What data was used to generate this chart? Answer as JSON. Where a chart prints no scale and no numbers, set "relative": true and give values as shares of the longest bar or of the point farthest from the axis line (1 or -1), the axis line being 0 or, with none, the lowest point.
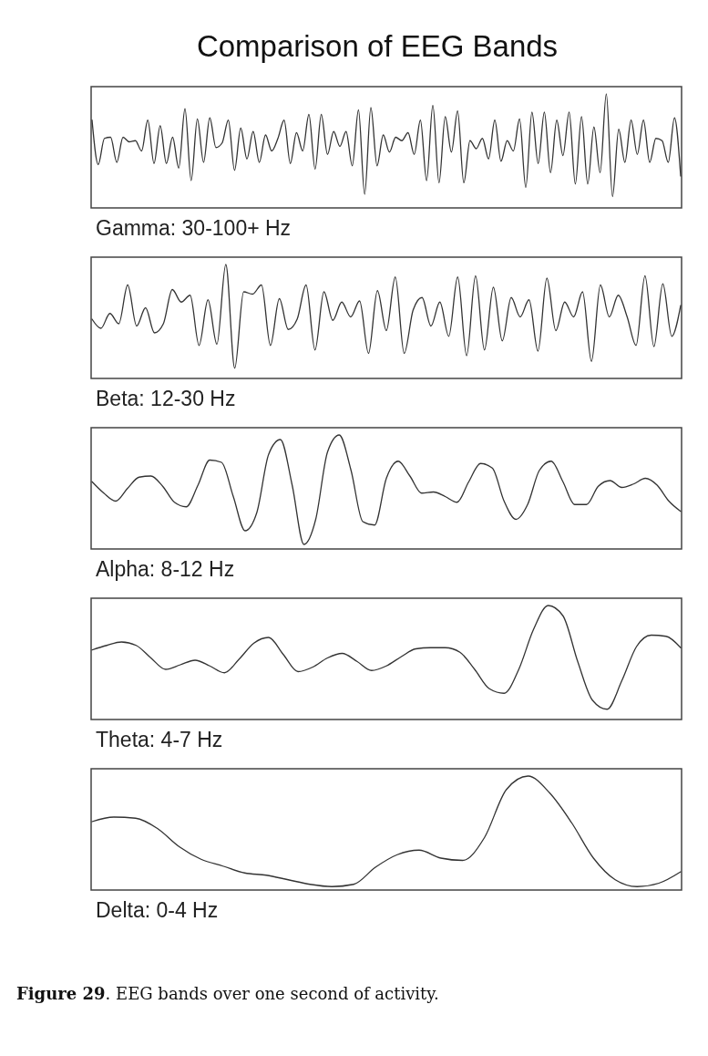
{
  "chart_data": [
    {
      "type": "line",
      "relative": true,
      "title": "Comparison of EEG Bands",
      "xlabel": "Gamma: 30-100+ Hz",
      "categories": [
        null,
        null,
        null,
        null,
        null,
        null,
        null,
        null,
        null,
        null,
        null,
        null,
        null,
        null,
        null,
        null,
        null,
        null,
        null,
        null,
        null,
        null,
        null,
        null,
        null,
        null,
        null,
        null,
        null,
        null,
        null,
        null,
        null,
        null,
        null,
        null,
        null,
        null,
        null,
        null,
        null,
        null,
        null,
        null,
        null,
        null,
        null,
        null,
        null,
        null,
        null,
        null,
        null,
        null,
        null,
        null,
        null,
        null,
        null,
        null,
        null,
        null,
        null,
        null,
        null,
        null,
        null,
        null,
        null,
        null,
        null,
        null,
        null,
        null,
        null,
        null,
        null,
        null,
        null,
        null,
        null,
        null,
        null,
        null,
        null,
        null,
        null,
        null,
        null,
        null,
        null,
        null,
        null,
        null,
        null,
        null
      ],
      "series": [
        {
          "color": "#333333",
          "values": [
            0.77,
            0.38,
            0.61,
            0.62,
            0.4,
            0.62,
            0.58,
            0.59,
            0.5,
            0.77,
            0.39,
            0.72,
            0.39,
            0.62,
            0.35,
            0.87,
            0.24,
            0.78,
            0.4,
            0.79,
            0.53,
            0.57,
            0.77,
            0.33,
            0.7,
            0.43,
            0.67,
            0.4,
            0.64,
            0.5,
            0.61,
            0.77,
            0.39,
            0.66,
            0.5,
            0.82,
            0.34,
            0.82,
            0.47,
            0.67,
            0.54,
            0.67,
            0.37,
            0.86,
            0.12,
            0.88,
            0.37,
            0.64,
            0.49,
            0.62,
            0.59,
            0.66,
            0.47,
            0.77,
            0.24,
            0.9,
            0.22,
            0.8,
            0.49,
            0.85,
            0.22,
            0.59,
            0.52,
            0.61,
            0.43,
            0.77,
            0.41,
            0.59,
            0.5,
            0.78,
            0.18,
            0.84,
            0.39,
            0.84,
            0.31,
            0.77,
            0.46,
            0.84,
            0.21,
            0.8,
            0.21,
            0.71,
            0.31,
            1,
            0.1,
            0.69,
            0.4,
            0.77,
            0.47,
            0.77,
            0.4,
            0.61,
            0.59,
            0.4,
            0.79,
            0.28
          ]
        }
      ]
    },
    {
      "type": "line",
      "relative": true,
      "xlabel": "Beta: 12-30 Hz",
      "categories": [
        null,
        null,
        null,
        null,
        null,
        null,
        null,
        null,
        null,
        null,
        null,
        null,
        null,
        null,
        null,
        null,
        null,
        null,
        null,
        null,
        null,
        null,
        null,
        null,
        null,
        null,
        null,
        null,
        null,
        null,
        null,
        null,
        null,
        null,
        null,
        null,
        null,
        null,
        null,
        null,
        null,
        null,
        null,
        null,
        null,
        null,
        null,
        null,
        null,
        null,
        null,
        null,
        null,
        null,
        null,
        null,
        null,
        null,
        null,
        null,
        null,
        null,
        null,
        null,
        null,
        null,
        null
      ],
      "series": [
        {
          "color": "#333333",
          "values": [
            0.52,
            0.44,
            0.57,
            0.48,
            0.82,
            0.46,
            0.62,
            0.4,
            0.48,
            0.78,
            0.67,
            0.73,
            0.29,
            0.69,
            0.3,
            1,
            0.09,
            0.76,
            0.74,
            0.82,
            0.29,
            0.7,
            0.43,
            0.52,
            0.82,
            0.25,
            0.76,
            0.51,
            0.67,
            0.54,
            0.68,
            0.22,
            0.77,
            0.42,
            0.89,
            0.22,
            0.6,
            0.71,
            0.46,
            0.67,
            0.37,
            0.89,
            0.2,
            0.9,
            0.25,
            0.8,
            0.33,
            0.71,
            0.54,
            0.69,
            0.24,
            0.88,
            0.42,
            0.67,
            0.54,
            0.76,
            0.15,
            0.82,
            0.54,
            0.73,
            0.54,
            0.29,
            0.9,
            0.28,
            0.83,
            0.37,
            0.64
          ]
        }
      ]
    },
    {
      "type": "line",
      "relative": true,
      "xlabel": "Alpha: 8-12 Hz",
      "categories": [
        null,
        null,
        null,
        null,
        null,
        null,
        null,
        null,
        null,
        null,
        null,
        null,
        null,
        null,
        null,
        null,
        null,
        null,
        null,
        null,
        null,
        null,
        null,
        null,
        null,
        null,
        null,
        null,
        null,
        null,
        null,
        null,
        null,
        null,
        null,
        null,
        null,
        null,
        null,
        null,
        null,
        null,
        null,
        null,
        null,
        null,
        null,
        null,
        null,
        null,
        null
      ],
      "series": [
        {
          "color": "#333333",
          "values": [
            0.59,
            0.49,
            0.42,
            0.53,
            0.63,
            0.64,
            0.55,
            0.41,
            0.37,
            0.56,
            0.78,
            0.76,
            0.46,
            0.16,
            0.32,
            0.83,
            0.96,
            0.56,
            0.04,
            0.26,
            0.85,
            1,
            0.69,
            0.24,
            0.21,
            0.62,
            0.77,
            0.64,
            0.49,
            0.5,
            0.46,
            0.41,
            0.59,
            0.75,
            0.71,
            0.42,
            0.26,
            0.39,
            0.69,
            0.77,
            0.59,
            0.39,
            0.39,
            0.55,
            0.6,
            0.54,
            0.57,
            0.62,
            0.56,
            0.42,
            0.33
          ]
        }
      ]
    },
    {
      "type": "line",
      "relative": true,
      "xlabel": "Theta: 4-7 Hz",
      "categories": [
        null,
        null,
        null,
        null,
        null,
        null,
        null,
        null,
        null,
        null,
        null,
        null,
        null,
        null,
        null,
        null,
        null,
        null,
        null,
        null,
        null,
        null,
        null,
        null,
        null,
        null,
        null,
        null,
        null,
        null,
        null,
        null,
        null,
        null,
        null,
        null,
        null,
        null,
        null,
        null,
        null
      ],
      "series": [
        {
          "color": "#333333",
          "values": [
            0.61,
            0.65,
            0.68,
            0.65,
            0.54,
            0.44,
            0.48,
            0.52,
            0.47,
            0.41,
            0.53,
            0.67,
            0.72,
            0.57,
            0.42,
            0.46,
            0.54,
            0.58,
            0.51,
            0.43,
            0.47,
            0.55,
            0.62,
            0.63,
            0.63,
            0.59,
            0.44,
            0.27,
            0.23,
            0.44,
            0.79,
            1,
            0.91,
            0.51,
            0.17,
            0.09,
            0.34,
            0.64,
            0.74,
            0.73,
            0.63
          ]
        }
      ]
    },
    {
      "type": "line",
      "relative": true,
      "xlabel": "Delta: 0-4 Hz",
      "annotations": [
        "Figure 29. EEG bands over one second of activity."
      ],
      "categories": [
        null,
        null,
        null,
        null,
        null,
        null,
        null,
        null,
        null,
        null,
        null,
        null,
        null,
        null,
        null,
        null,
        null,
        null,
        null,
        null,
        null,
        null,
        null,
        null,
        null,
        null,
        null,
        null
      ],
      "series": [
        {
          "color": "#333333",
          "values": [
            0.6,
            0.64,
            0.63,
            0.54,
            0.38,
            0.27,
            0.21,
            0.15,
            0.13,
            0.09,
            0.05,
            0.03,
            0.05,
            0.2,
            0.31,
            0.35,
            0.28,
            0.26,
            0.46,
            0.88,
            1,
            0.85,
            0.59,
            0.28,
            0.09,
            0.03,
            0.06,
            0.16
          ]
        }
      ]
    }
  ]
}
